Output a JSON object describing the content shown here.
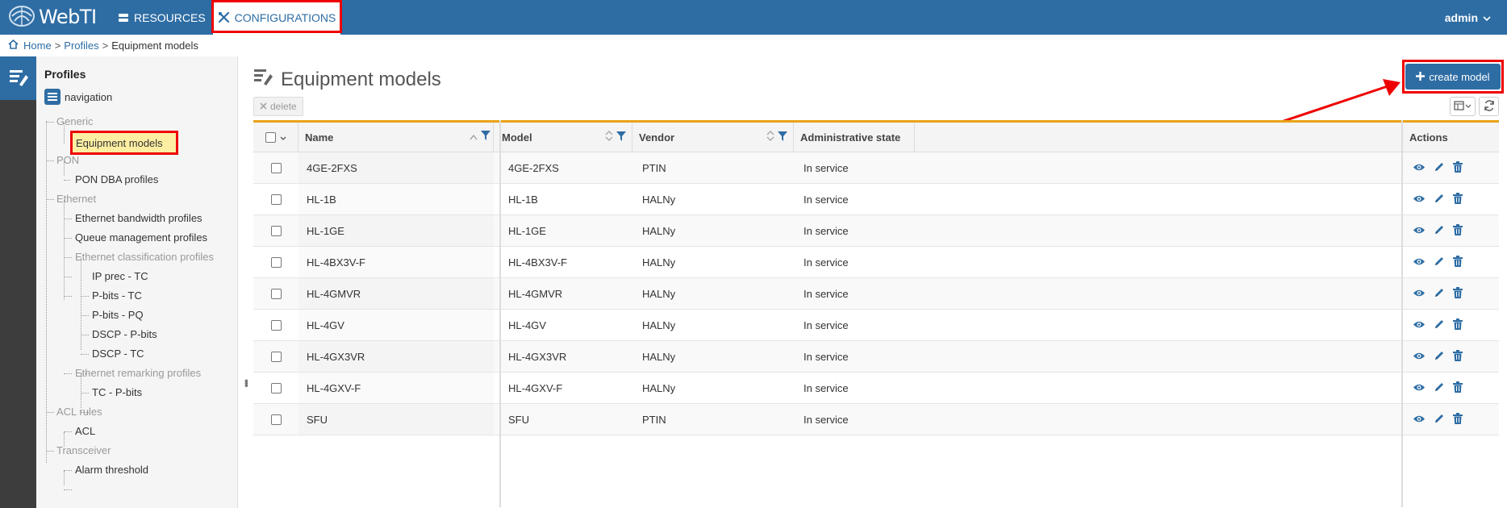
{
  "app": {
    "title": "WebTI"
  },
  "topnav": {
    "resources": "RESOURCES",
    "configurations": "CONFIGURATIONS",
    "user": "admin"
  },
  "breadcrumb": {
    "home": "Home",
    "profiles": "Profiles",
    "current": "Equipment models"
  },
  "tree": {
    "title": "Profiles",
    "nav_label": "navigation",
    "nodes": {
      "generic": "Generic",
      "equipment_models": "Equipment models",
      "pon": "PON",
      "pon_dba": "PON DBA profiles",
      "ethernet": "Ethernet",
      "eth_bw": "Ethernet bandwidth profiles",
      "queue_mgmt": "Queue management profiles",
      "eth_class": "Ethernet classification profiles",
      "ip_prec_tc": "IP prec - TC",
      "pbits_tc": "P-bits - TC",
      "pbits_pq": "P-bits - PQ",
      "dscp_pbits": "DSCP - P-bits",
      "dscp_tc": "DSCP - TC",
      "eth_remark": "Ethernet remarking profiles",
      "tc_pbits": "TC - P-bits",
      "acl_rules": "ACL rules",
      "acl": "ACL",
      "transceiver": "Transceiver",
      "alarm_threshold": "Alarm threshold"
    }
  },
  "main": {
    "title": "Equipment models",
    "create_label": "create model",
    "delete_label": "delete",
    "columns": {
      "name": "Name",
      "model": "Model",
      "vendor": "Vendor",
      "admin_state": "Administrative state",
      "actions": "Actions"
    },
    "rows": [
      {
        "name": "4GE-2FXS",
        "model": "4GE-2FXS",
        "vendor": "PTIN",
        "state": "In service"
      },
      {
        "name": "HL-1B",
        "model": "HL-1B",
        "vendor": "HALNy",
        "state": "In service"
      },
      {
        "name": "HL-1GE",
        "model": "HL-1GE",
        "vendor": "HALNy",
        "state": "In service"
      },
      {
        "name": "HL-4BX3V-F",
        "model": "HL-4BX3V-F",
        "vendor": "HALNy",
        "state": "In service"
      },
      {
        "name": "HL-4GMVR",
        "model": "HL-4GMVR",
        "vendor": "HALNy",
        "state": "In service"
      },
      {
        "name": "HL-4GV",
        "model": "HL-4GV",
        "vendor": "HALNy",
        "state": "In service"
      },
      {
        "name": "HL-4GX3VR",
        "model": "HL-4GX3VR",
        "vendor": "HALNy",
        "state": "In service"
      },
      {
        "name": "HL-4GXV-F",
        "model": "HL-4GXV-F",
        "vendor": "HALNy",
        "state": "In service"
      },
      {
        "name": "SFU",
        "model": "SFU",
        "vendor": "PTIN",
        "state": "In service"
      }
    ]
  },
  "colors": {
    "brand": "#2e6da4",
    "highlight": "#e00000",
    "grid_accent": "#e8a317",
    "selected_node": "#fdeea2"
  },
  "icons": [
    "logo-icon",
    "server-icon",
    "tools-icon",
    "chevron-down-icon",
    "home-icon",
    "profiles-icon",
    "list-icon",
    "plus-icon",
    "x-icon",
    "columns-icon",
    "refresh-icon",
    "sort-icon",
    "filter-icon",
    "eye-icon",
    "pencil-icon",
    "trash-icon"
  ]
}
